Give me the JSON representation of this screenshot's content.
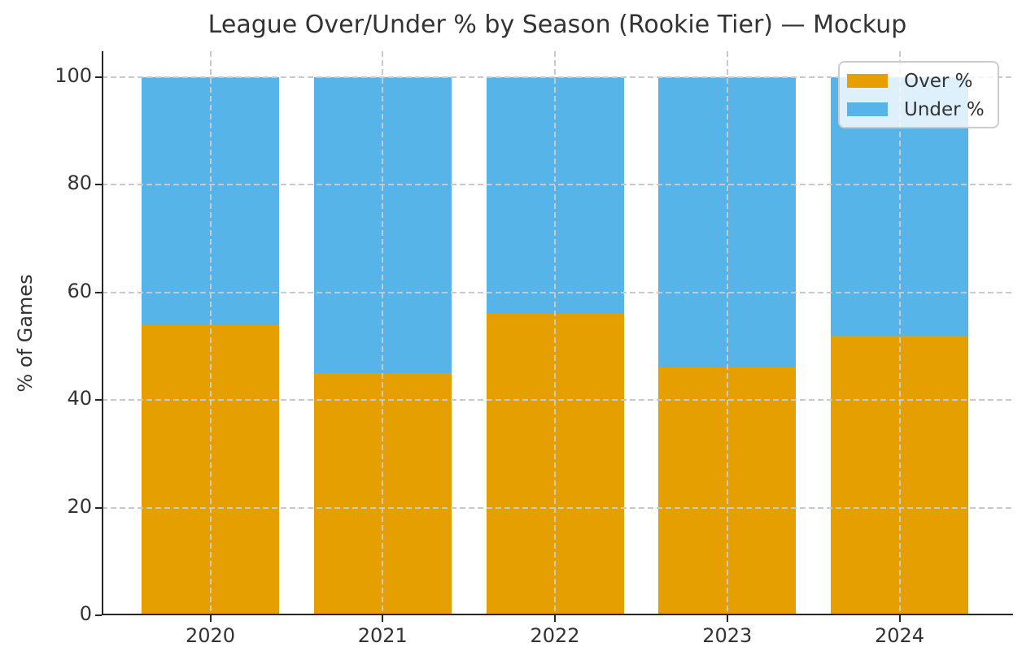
{
  "chart_data": {
    "type": "bar",
    "stacked": true,
    "title": "League Over/Under % by Season (Rookie Tier) — Mockup",
    "ylabel": "% of Games",
    "xlabel": "",
    "categories": [
      "2020",
      "2021",
      "2022",
      "2023",
      "2024"
    ],
    "series": [
      {
        "name": "Over %",
        "color": "#E69F00",
        "values": [
          54,
          45,
          56,
          46,
          52
        ]
      },
      {
        "name": "Under %",
        "color": "#56B4E9",
        "values": [
          46,
          55,
          44,
          54,
          48
        ]
      }
    ],
    "yticks": [
      0,
      20,
      40,
      60,
      80,
      100
    ],
    "ylim": [
      0,
      105
    ],
    "grid": "dashed, both axes, drawn above bars",
    "legend_position": "upper-right",
    "spines": "left and bottom only"
  },
  "style": {
    "over_color": "#E69F00",
    "under_color": "#56B4E9",
    "text_color": "#333333",
    "spine_color": "#262626",
    "grid_color": "#c9c9c9",
    "background": "#ffffff"
  }
}
